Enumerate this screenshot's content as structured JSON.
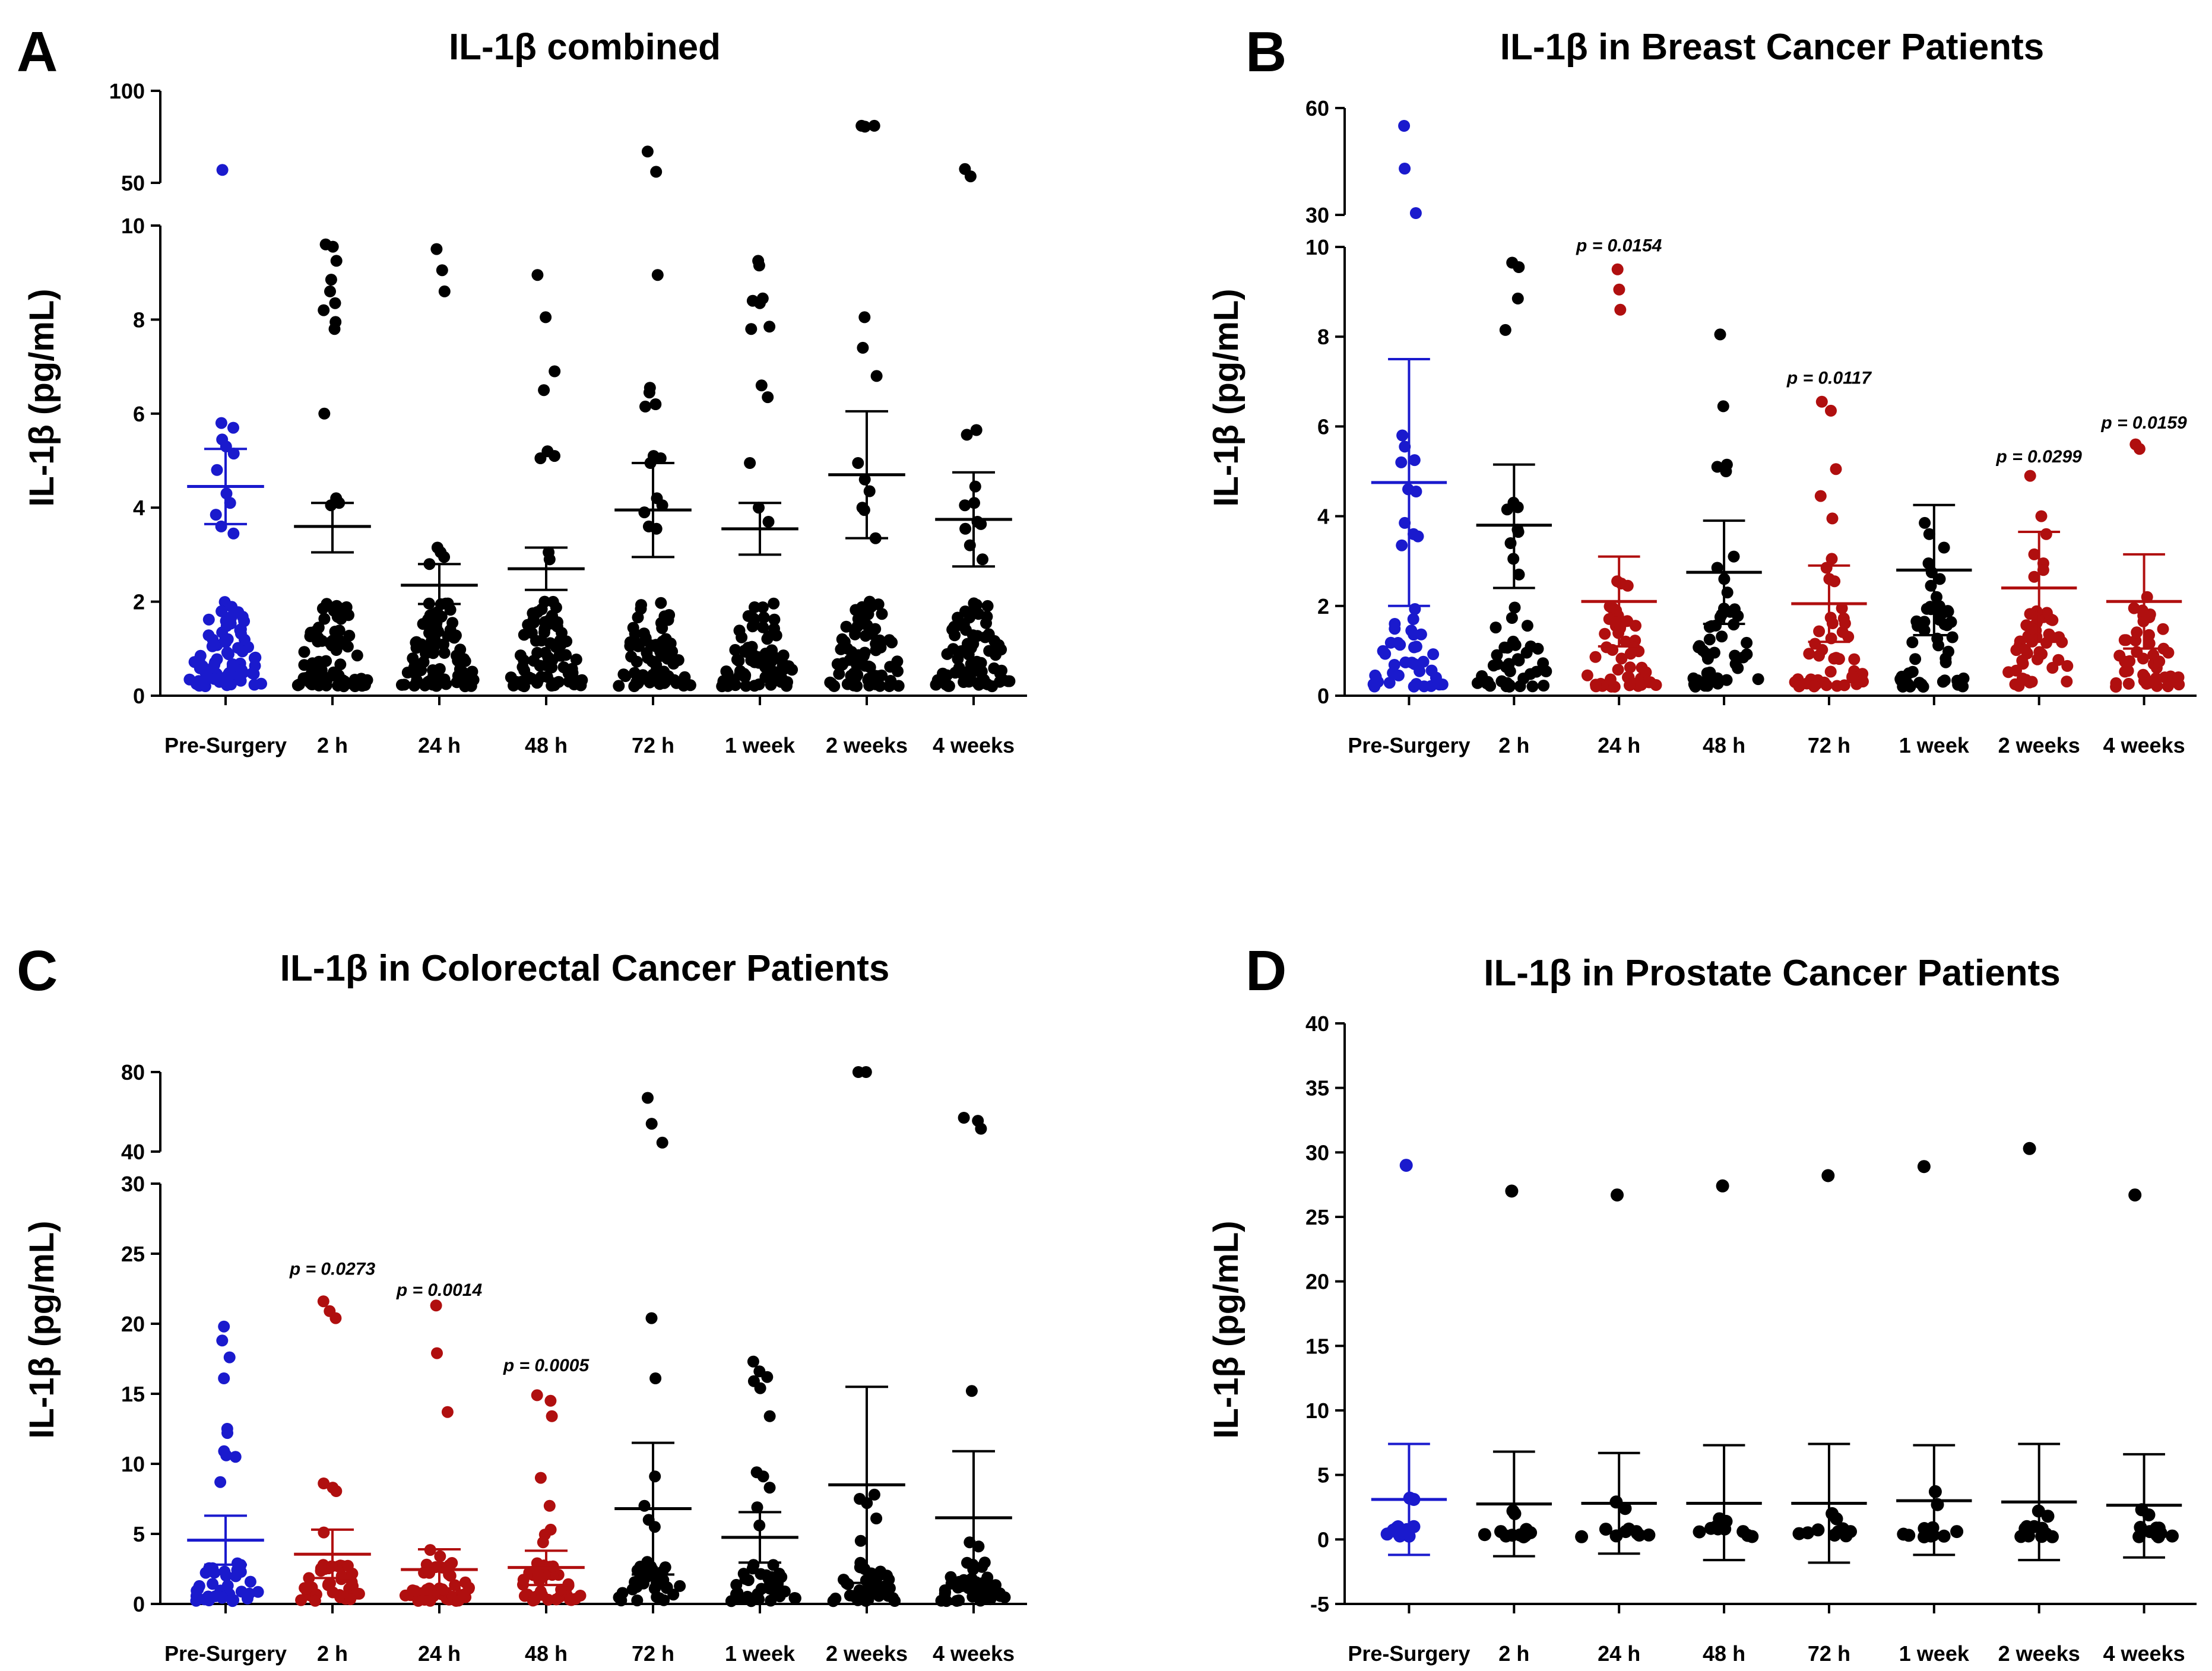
{
  "colors": {
    "baseline": "#1a1acd",
    "significant": "#b00f0f",
    "other": "#000000"
  },
  "categories": [
    "Pre-Surgery",
    "2 h",
    "24 h",
    "48 h",
    "72 h",
    "1 week",
    "2 weeks",
    "4 weeks"
  ],
  "y_axis_label": "IL-1β (pg/mL)",
  "chart_data": [
    {
      "panel": "A",
      "type": "scatter",
      "title": "IL-1β combined",
      "ylabel": "IL-1β (pg/mL)",
      "xlabel": "",
      "grid": false,
      "categories": [
        "Pre-Surgery",
        "2 h",
        "24 h",
        "48 h",
        "72 h",
        "1 week",
        "2 weeks",
        "4 weeks"
      ],
      "y_axis": {
        "type": "broken",
        "lower_range": [
          0,
          10
        ],
        "lower_ticks": [
          0,
          2,
          4,
          6,
          8,
          10
        ],
        "upper_range": [
          50,
          100
        ],
        "upper_ticks": [
          50,
          100
        ]
      },
      "groups": [
        {
          "category": "Pre-Surgery",
          "color": "baseline",
          "mean": 4.45,
          "sd_upper": 5.25,
          "sd_lower": 3.65,
          "n": 85,
          "outliers": [
            57.0,
            5.8,
            5.7,
            5.45,
            5.3,
            5.15,
            4.8,
            4.3,
            4.1,
            3.85,
            3.6,
            3.45
          ]
        },
        {
          "category": "2 h",
          "color": "other",
          "mean": 3.6,
          "sd_upper": 4.1,
          "sd_lower": 3.05,
          "n": 85,
          "outliers": [
            9.6,
            9.55,
            9.25,
            8.85,
            8.6,
            8.35,
            8.2,
            7.95,
            7.8,
            6.0,
            4.2,
            4.1,
            4.05
          ]
        },
        {
          "category": "24 h",
          "color": "other",
          "mean": 2.35,
          "sd_upper": 2.8,
          "sd_lower": 1.95,
          "n": 85,
          "outliers": [
            9.5,
            9.05,
            8.6,
            3.15,
            3.05,
            2.95,
            2.8
          ]
        },
        {
          "category": "48 h",
          "color": "other",
          "mean": 2.7,
          "sd_upper": 3.15,
          "sd_lower": 2.25,
          "n": 85,
          "outliers": [
            8.95,
            8.05,
            6.9,
            6.5,
            5.2,
            5.1,
            5.05,
            3.05,
            2.9
          ]
        },
        {
          "category": "72 h",
          "color": "other",
          "mean": 3.95,
          "sd_upper": 4.95,
          "sd_lower": 2.95,
          "n": 85,
          "outliers": [
            67.0,
            56.0,
            8.95,
            6.55,
            6.45,
            6.2,
            6.15,
            5.1,
            5.05,
            4.95,
            4.2,
            4.05,
            3.9,
            3.6,
            3.55
          ]
        },
        {
          "category": "1 week",
          "color": "other",
          "mean": 3.55,
          "sd_upper": 4.1,
          "sd_lower": 3.0,
          "n": 85,
          "outliers": [
            9.25,
            9.15,
            8.45,
            8.4,
            8.35,
            7.85,
            7.8,
            6.6,
            6.35,
            4.95,
            4.0,
            3.7
          ]
        },
        {
          "category": "2 weeks",
          "color": "other",
          "mean": 4.7,
          "sd_upper": 6.05,
          "sd_lower": 3.35,
          "n": 85,
          "outliers": [
            81.0,
            80.5,
            81.0,
            8.05,
            7.4,
            6.8,
            4.95,
            4.6,
            4.35,
            4.0,
            3.95,
            3.35
          ]
        },
        {
          "category": "4 weeks",
          "color": "other",
          "mean": 3.75,
          "sd_upper": 4.75,
          "sd_lower": 2.75,
          "n": 85,
          "outliers": [
            57.5,
            53.5,
            5.65,
            5.55,
            4.45,
            4.1,
            4.05,
            3.7,
            3.65,
            3.55,
            3.2,
            2.9
          ]
        }
      ],
      "annotations": []
    },
    {
      "panel": "B",
      "type": "scatter",
      "title": "IL-1β in Breast Cancer Patients",
      "ylabel": "IL-1β (pg/mL)",
      "xlabel": "",
      "grid": false,
      "categories": [
        "Pre-Surgery",
        "2 h",
        "24 h",
        "48 h",
        "72 h",
        "1 week",
        "2 weeks",
        "4 weeks"
      ],
      "y_axis": {
        "type": "broken",
        "lower_range": [
          0,
          10
        ],
        "lower_ticks": [
          0,
          2,
          4,
          6,
          8,
          10
        ],
        "upper_range": [
          30,
          60
        ],
        "upper_ticks": [
          30,
          60
        ]
      },
      "groups": [
        {
          "category": "Pre-Surgery",
          "color": "baseline",
          "mean": 4.75,
          "sd_upper": 7.5,
          "sd_lower": 2.0,
          "n": 50,
          "outliers": [
            55.0,
            43.0,
            30.5,
            5.8,
            5.55,
            5.25,
            5.2,
            4.6,
            4.55,
            3.85,
            3.6,
            3.55,
            3.35
          ]
        },
        {
          "category": "2 h",
          "color": "other",
          "mean": 3.8,
          "sd_upper": 5.15,
          "sd_lower": 2.4,
          "n": 50,
          "outliers": [
            9.65,
            9.55,
            8.85,
            8.15,
            4.3,
            4.2,
            4.15,
            3.7,
            3.65,
            3.4,
            3.05,
            2.7
          ]
        },
        {
          "category": "24 h",
          "color": "significant",
          "mean": 2.1,
          "sd_upper": 3.1,
          "sd_lower": 1.1,
          "n": 50,
          "outliers": [
            9.5,
            9.05,
            8.6,
            2.55,
            2.5,
            2.45
          ]
        },
        {
          "category": "48 h",
          "color": "other",
          "mean": 2.75,
          "sd_upper": 3.9,
          "sd_lower": 1.6,
          "n": 50,
          "outliers": [
            8.05,
            6.45,
            5.15,
            5.1,
            5.0,
            3.1,
            2.85,
            2.6,
            2.3
          ]
        },
        {
          "category": "72 h",
          "color": "significant",
          "mean": 2.05,
          "sd_upper": 2.9,
          "sd_lower": 1.2,
          "n": 50,
          "outliers": [
            6.55,
            6.35,
            5.05,
            4.45,
            3.95,
            3.05,
            2.85,
            2.6,
            2.55
          ]
        },
        {
          "category": "1 week",
          "color": "other",
          "mean": 2.8,
          "sd_upper": 4.25,
          "sd_lower": 1.35,
          "n": 50,
          "outliers": [
            3.85,
            3.6,
            3.3,
            2.95,
            2.75,
            2.6,
            2.45,
            2.2
          ]
        },
        {
          "category": "2 weeks",
          "color": "significant",
          "mean": 2.4,
          "sd_upper": 3.65,
          "sd_lower": 1.2,
          "n": 50,
          "outliers": [
            4.9,
            4.0,
            3.6,
            3.15,
            2.95,
            2.8,
            2.65
          ]
        },
        {
          "category": "4 weeks",
          "color": "significant",
          "mean": 2.1,
          "sd_upper": 3.15,
          "sd_lower": 1.05,
          "n": 50,
          "outliers": [
            5.6,
            5.5,
            2.2,
            1.95,
            1.9
          ]
        }
      ],
      "annotations": [
        {
          "category": "24 h",
          "text": "p = 0.0154",
          "y": 9.9
        },
        {
          "category": "72 h",
          "text": "p = 0.0117",
          "y": 6.95
        },
        {
          "category": "2 weeks",
          "text": "p = 0.0299",
          "y": 5.2
        },
        {
          "category": "4 weeks",
          "text": "p = 0.0159",
          "y": 5.95
        }
      ]
    },
    {
      "panel": "C",
      "type": "scatter",
      "title": "IL-1β in Colorectal Cancer Patients",
      "ylabel": "IL-1β (pg/mL)",
      "xlabel": "",
      "grid": false,
      "categories": [
        "Pre-Surgery",
        "2 h",
        "24 h",
        "48 h",
        "72 h",
        "1 week",
        "2 weeks",
        "4 weeks"
      ],
      "y_axis": {
        "type": "broken",
        "lower_range": [
          0,
          30
        ],
        "lower_ticks": [
          0,
          5,
          10,
          15,
          20,
          25,
          30
        ],
        "upper_range": [
          40,
          80
        ],
        "upper_ticks": [
          40,
          80
        ]
      },
      "groups": [
        {
          "category": "Pre-Surgery",
          "color": "baseline",
          "mean": 4.55,
          "sd_upper": 6.3,
          "sd_lower": 2.8,
          "n": 45,
          "outliers": [
            19.8,
            18.8,
            17.6,
            16.1,
            12.5,
            12.2,
            10.9,
            10.6,
            10.5,
            8.7
          ]
        },
        {
          "category": "2 h",
          "color": "significant",
          "mean": 3.55,
          "sd_upper": 5.3,
          "sd_lower": 1.85,
          "n": 45,
          "outliers": [
            21.6,
            20.9,
            20.4,
            8.6,
            8.3,
            8.05,
            5.1
          ]
        },
        {
          "category": "24 h",
          "color": "significant",
          "mean": 2.45,
          "sd_upper": 3.9,
          "sd_lower": 1.1,
          "n": 45,
          "outliers": [
            21.3,
            17.9,
            13.7,
            3.85,
            3.4
          ]
        },
        {
          "category": "48 h",
          "color": "significant",
          "mean": 2.6,
          "sd_upper": 3.8,
          "sd_lower": 1.35,
          "n": 45,
          "outliers": [
            14.9,
            14.5,
            13.4,
            9.0,
            7.0,
            5.3,
            4.95,
            4.4
          ]
        },
        {
          "category": "72 h",
          "color": "other",
          "mean": 6.8,
          "sd_upper": 11.5,
          "sd_lower": 2.1,
          "n": 45,
          "outliers": [
            67.0,
            54.0,
            44.5,
            20.4,
            16.1,
            9.1,
            7.0,
            6.0,
            5.5
          ]
        },
        {
          "category": "1 week",
          "color": "other",
          "mean": 4.75,
          "sd_upper": 6.55,
          "sd_lower": 2.95,
          "n": 45,
          "outliers": [
            17.3,
            16.6,
            16.2,
            15.9,
            15.4,
            13.4,
            9.4,
            9.1,
            8.3,
            6.9,
            5.6
          ]
        },
        {
          "category": "2 weeks",
          "color": "other",
          "mean": 8.5,
          "sd_upper": 15.5,
          "sd_lower": 1.5,
          "n": 45,
          "outliers": [
            81.0,
            80.5,
            7.8,
            7.5,
            7.2,
            6.1,
            4.5
          ]
        },
        {
          "category": "4 weeks",
          "color": "other",
          "mean": 6.15,
          "sd_upper": 10.9,
          "sd_lower": 1.4,
          "n": 45,
          "outliers": [
            57.0,
            55.5,
            51.5,
            15.2,
            4.4,
            4.1
          ]
        }
      ],
      "annotations": [
        {
          "category": "2 h",
          "text": "p = 0.0273",
          "y": 23.5
        },
        {
          "category": "24 h",
          "text": "p = 0.0014",
          "y": 22.0
        },
        {
          "category": "48 h",
          "text": "p = 0.0005",
          "y": 16.6
        }
      ]
    },
    {
      "panel": "D",
      "type": "scatter",
      "title": "IL-1β in Prostate Cancer Patients",
      "ylabel": "IL-1β (pg/mL)",
      "xlabel": "",
      "grid": false,
      "categories": [
        "Pre-Surgery",
        "2 h",
        "24 h",
        "48 h",
        "72 h",
        "1 week",
        "2 weeks",
        "4 weeks"
      ],
      "y_axis": {
        "type": "linear",
        "range": [
          -5,
          40
        ],
        "ticks": [
          -5,
          0,
          5,
          10,
          15,
          20,
          25,
          30,
          35,
          40
        ]
      },
      "groups": [
        {
          "category": "Pre-Surgery",
          "color": "baseline",
          "mean": 3.1,
          "sd_upper": 7.4,
          "sd_lower": -1.2,
          "n": 12,
          "outliers": [
            29.0,
            3.2,
            3.1
          ]
        },
        {
          "category": "2 h",
          "color": "other",
          "mean": 2.75,
          "sd_upper": 6.8,
          "sd_lower": -1.3,
          "n": 12,
          "outliers": [
            27.0,
            2.2,
            2.0
          ]
        },
        {
          "category": "24 h",
          "color": "other",
          "mean": 2.8,
          "sd_upper": 6.7,
          "sd_lower": -1.1,
          "n": 12,
          "outliers": [
            26.7,
            2.9,
            2.4
          ]
        },
        {
          "category": "48 h",
          "color": "other",
          "mean": 2.8,
          "sd_upper": 7.3,
          "sd_lower": -1.6,
          "n": 12,
          "outliers": [
            27.4,
            1.6,
            1.4
          ]
        },
        {
          "category": "72 h",
          "color": "other",
          "mean": 2.8,
          "sd_upper": 7.4,
          "sd_lower": -1.8,
          "n": 12,
          "outliers": [
            28.2,
            2.0,
            1.6
          ]
        },
        {
          "category": "1 week",
          "color": "other",
          "mean": 3.0,
          "sd_upper": 7.3,
          "sd_lower": -1.2,
          "n": 12,
          "outliers": [
            28.9,
            3.7,
            2.7
          ]
        },
        {
          "category": "2 weeks",
          "color": "other",
          "mean": 2.9,
          "sd_upper": 7.4,
          "sd_lower": -1.6,
          "n": 12,
          "outliers": [
            30.3,
            2.2,
            1.8
          ]
        },
        {
          "category": "4 weeks",
          "color": "other",
          "mean": 2.65,
          "sd_upper": 6.6,
          "sd_lower": -1.4,
          "n": 12,
          "outliers": [
            26.7,
            2.3,
            1.9
          ]
        }
      ],
      "annotations": []
    }
  ]
}
